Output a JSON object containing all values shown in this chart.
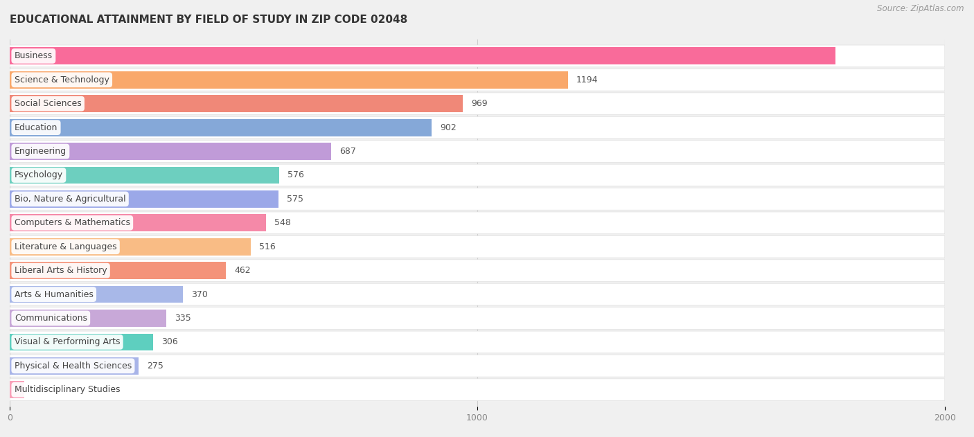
{
  "title": "EDUCATIONAL ATTAINMENT BY FIELD OF STUDY IN ZIP CODE 02048",
  "source": "Source: ZipAtlas.com",
  "categories": [
    "Business",
    "Science & Technology",
    "Social Sciences",
    "Education",
    "Engineering",
    "Psychology",
    "Bio, Nature & Agricultural",
    "Computers & Mathematics",
    "Literature & Languages",
    "Liberal Arts & History",
    "Arts & Humanities",
    "Communications",
    "Visual & Performing Arts",
    "Physical & Health Sciences",
    "Multidisciplinary Studies"
  ],
  "values": [
    1766,
    1194,
    969,
    902,
    687,
    576,
    575,
    548,
    516,
    462,
    370,
    335,
    306,
    275,
    31
  ],
  "bar_colors": [
    "#F96B9A",
    "#F9A86B",
    "#F08878",
    "#85A8D8",
    "#C09BD8",
    "#6DCFBF",
    "#9BA8E8",
    "#F589A8",
    "#F9BC85",
    "#F4937A",
    "#A8B8E8",
    "#C8A8D8",
    "#5ECFBF",
    "#A8B4E8",
    "#F9A0B8"
  ],
  "xlim": [
    0,
    2000
  ],
  "xticks": [
    0,
    1000,
    2000
  ],
  "background_color": "#f0f0f0",
  "row_bg_color": "#ffffff",
  "row_sep_color": "#e0e0e0",
  "title_fontsize": 11,
  "source_fontsize": 8.5,
  "label_fontsize": 9,
  "value_fontsize": 9
}
